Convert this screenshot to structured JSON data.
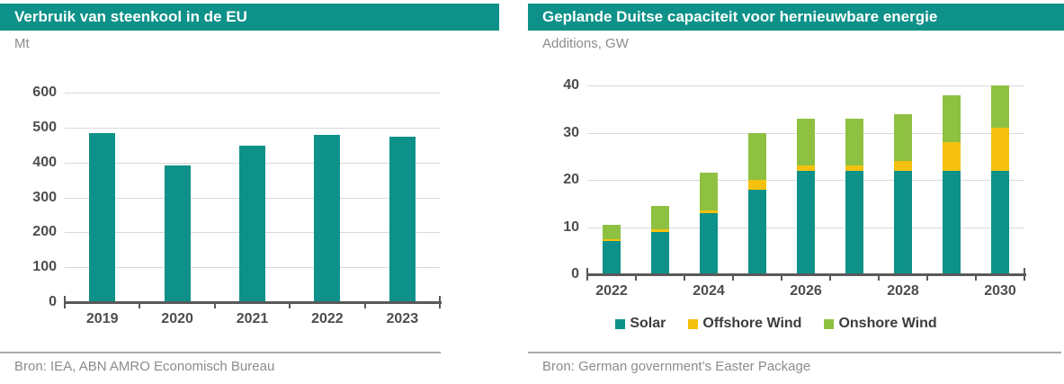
{
  "colors": {
    "teal": "#0E9189",
    "yellow": "#F5C10E",
    "green": "#8EC041",
    "axis": "#595959",
    "grid": "#D9D9D9",
    "tick_text": "#4D4D4D",
    "legend_text": "#3C3C3C",
    "muted_text": "#8C8C8C",
    "divider": "#ABABAB",
    "title_text": "#FFFFFF"
  },
  "chart_data": [
    {
      "type": "bar",
      "title": "Verbruik van steenkool in de EU",
      "unit_label": "Mt",
      "source": "Bron: IEA, ABN AMRO Economisch Bureau",
      "categories": [
        "2019",
        "2020",
        "2021",
        "2022",
        "2023"
      ],
      "values": [
        484,
        391,
        447,
        478,
        473
      ],
      "bar_color": "#0E9189",
      "ylim": [
        0,
        600
      ],
      "ytick_step": 100,
      "yticks": [
        0,
        100,
        200,
        300,
        400,
        500,
        600
      ],
      "grid": true,
      "legend": null
    },
    {
      "type": "stacked-bar",
      "title": "Geplande Duitse capaciteit voor hernieuwbare energie",
      "unit_label": "Additions, GW",
      "source": "Bron: German government’s Easter Package",
      "categories": [
        "2022",
        "2023",
        "2024",
        "2025",
        "2026",
        "2027",
        "2028",
        "2029",
        "2030"
      ],
      "xtick_labels": [
        "2022",
        "2024",
        "2026",
        "2028",
        "2030"
      ],
      "xtick_every": 2,
      "series": [
        {
          "name": "Solar",
          "color": "#0E9189",
          "values": [
            7,
            9,
            13,
            18,
            22,
            22,
            22,
            22,
            22
          ]
        },
        {
          "name": "Offshore Wind",
          "color": "#F5C10E",
          "values": [
            0.5,
            0.5,
            0.5,
            2,
            1,
            1,
            2,
            6,
            9
          ]
        },
        {
          "name": "Onshore Wind",
          "color": "#8EC041",
          "values": [
            3,
            5,
            8,
            10,
            10,
            10,
            10,
            10,
            9
          ]
        }
      ],
      "totals": [
        10.5,
        14.5,
        21.5,
        30,
        33,
        33,
        34,
        38,
        40
      ],
      "ylim": [
        0,
        40
      ],
      "ytick_step": 10,
      "yticks": [
        0,
        10,
        20,
        30,
        40
      ],
      "grid": true,
      "legend_position": "bottom"
    }
  ]
}
